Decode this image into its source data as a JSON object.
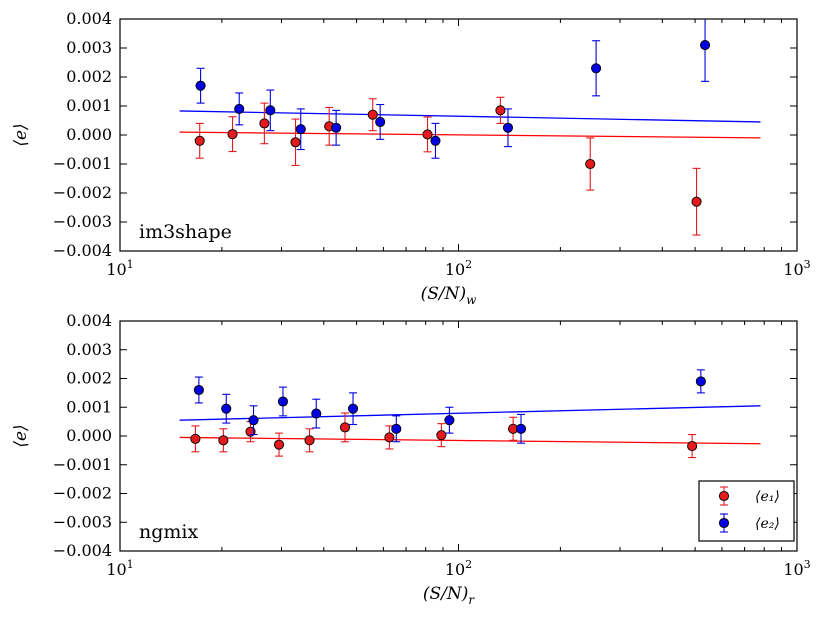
{
  "colors": {
    "e1": "#e41a1c",
    "e2": "#0000e0",
    "e1_line": "#ff0000",
    "e2_line": "#0000ff"
  },
  "chart_data": [
    {
      "type": "scatter",
      "panel_label": "im3shape",
      "xlabel": "(S/N)_w",
      "xlabel_main": "(S/N)",
      "xlabel_sub": "w",
      "ylabel": "⟨e⟩",
      "xscale": "log",
      "xlim": [
        10,
        1000
      ],
      "ylim": [
        -0.004,
        0.004
      ],
      "x_ticks": [
        10,
        100,
        1000
      ],
      "x_tick_labels": [
        {
          "base": "10",
          "exp": "1"
        },
        {
          "base": "10",
          "exp": "2"
        },
        {
          "base": "10",
          "exp": "3"
        }
      ],
      "y_ticks": [
        0.004,
        0.003,
        0.002,
        0.001,
        0.0,
        -0.001,
        -0.002,
        -0.003,
        -0.004
      ],
      "y_tick_labels": [
        "0.004",
        "0.003",
        "0.002",
        "0.001",
        "0.000",
        "−0.001",
        "−0.002",
        "−0.003",
        "−0.004"
      ],
      "series": [
        {
          "key": "e1",
          "points": [
            {
              "x": 17.2,
              "y": -0.0002,
              "err": 0.0006
            },
            {
              "x": 21.5,
              "y": 3e-05,
              "err": 0.0006
            },
            {
              "x": 26.7,
              "y": 0.0004,
              "err": 0.0007
            },
            {
              "x": 33.0,
              "y": -0.00025,
              "err": 0.0008
            },
            {
              "x": 41.5,
              "y": 0.0003,
              "err": 0.00065
            },
            {
              "x": 55.8,
              "y": 0.0007,
              "err": 0.00055
            },
            {
              "x": 81.0,
              "y": 2e-05,
              "err": 0.0006
            },
            {
              "x": 133,
              "y": 0.00085,
              "err": 0.00045
            },
            {
              "x": 245,
              "y": -0.001,
              "err": 0.0009
            },
            {
              "x": 505,
              "y": -0.0023,
              "err": 0.00115
            }
          ],
          "fit": {
            "x": [
              15,
              780
            ],
            "y": [
              0.0001,
              -0.0001
            ]
          }
        },
        {
          "key": "e2",
          "points": [
            {
              "x": 17.3,
              "y": 0.0017,
              "err": 0.0006
            },
            {
              "x": 22.5,
              "y": 0.0009,
              "err": 0.00055
            },
            {
              "x": 27.8,
              "y": 0.00085,
              "err": 0.0007
            },
            {
              "x": 34.2,
              "y": 0.0002,
              "err": 0.0007
            },
            {
              "x": 43.5,
              "y": 0.00025,
              "err": 0.0006
            },
            {
              "x": 58.7,
              "y": 0.00045,
              "err": 0.0006
            },
            {
              "x": 85.5,
              "y": -0.0002,
              "err": 0.0006
            },
            {
              "x": 140,
              "y": 0.00025,
              "err": 0.00065
            },
            {
              "x": 255,
              "y": 0.0023,
              "err": 0.00095
            },
            {
              "x": 535,
              "y": 0.0031,
              "err": 0.00125
            }
          ],
          "fit": {
            "x": [
              15,
              780
            ],
            "y": [
              0.00083,
              0.00045
            ]
          }
        }
      ]
    },
    {
      "type": "scatter",
      "panel_label": "ngmix",
      "xlabel": "(S/N)_r",
      "xlabel_main": "(S/N)",
      "xlabel_sub": "r",
      "ylabel": "⟨e⟩",
      "xscale": "log",
      "xlim": [
        10,
        1000
      ],
      "ylim": [
        -0.004,
        0.004
      ],
      "x_ticks": [
        10,
        100,
        1000
      ],
      "x_tick_labels": [
        {
          "base": "10",
          "exp": "1"
        },
        {
          "base": "10",
          "exp": "2"
        },
        {
          "base": "10",
          "exp": "3"
        }
      ],
      "y_ticks": [
        0.004,
        0.003,
        0.002,
        0.001,
        0.0,
        -0.001,
        -0.002,
        -0.003,
        -0.004
      ],
      "y_tick_labels": [
        "0.004",
        "0.003",
        "0.002",
        "0.001",
        "0.000",
        "−0.001",
        "−0.002",
        "−0.003",
        "−0.004"
      ],
      "legend": {
        "position": "lower right",
        "entries": [
          {
            "key": "e1",
            "label": "⟨e₁⟩"
          },
          {
            "key": "e2",
            "label": "⟨e₂⟩"
          }
        ]
      },
      "series": [
        {
          "key": "e1",
          "points": [
            {
              "x": 16.7,
              "y": -0.0001,
              "err": 0.00045
            },
            {
              "x": 20.2,
              "y": -0.00015,
              "err": 0.0004
            },
            {
              "x": 24.3,
              "y": 0.00015,
              "err": 0.00035
            },
            {
              "x": 29.5,
              "y": -0.0003,
              "err": 0.0004
            },
            {
              "x": 36.3,
              "y": -0.00015,
              "err": 0.0004
            },
            {
              "x": 46.2,
              "y": 0.0003,
              "err": 0.0005
            },
            {
              "x": 62.5,
              "y": -5e-05,
              "err": 0.0004
            },
            {
              "x": 89.0,
              "y": 3e-05,
              "err": 0.0004
            },
            {
              "x": 145,
              "y": 0.00025,
              "err": 0.0004
            },
            {
              "x": 490,
              "y": -0.00035,
              "err": 0.0004
            }
          ],
          "fit": {
            "x": [
              15,
              780
            ],
            "y": [
              -5e-05,
              -0.00027
            ]
          }
        },
        {
          "key": "e2",
          "points": [
            {
              "x": 17.1,
              "y": 0.0016,
              "err": 0.00045
            },
            {
              "x": 20.6,
              "y": 0.00095,
              "err": 0.0005
            },
            {
              "x": 24.8,
              "y": 0.00055,
              "err": 0.0005
            },
            {
              "x": 30.3,
              "y": 0.0012,
              "err": 0.0005
            },
            {
              "x": 38.0,
              "y": 0.00078,
              "err": 0.0005
            },
            {
              "x": 48.8,
              "y": 0.00095,
              "err": 0.00055
            },
            {
              "x": 65.5,
              "y": 0.00025,
              "err": 0.00045
            },
            {
              "x": 94.0,
              "y": 0.00055,
              "err": 0.00045
            },
            {
              "x": 153,
              "y": 0.00025,
              "err": 0.0005
            },
            {
              "x": 520,
              "y": 0.0019,
              "err": 0.0004
            }
          ],
          "fit": {
            "x": [
              15,
              780
            ],
            "y": [
              0.00055,
              0.00105
            ]
          }
        }
      ]
    }
  ]
}
